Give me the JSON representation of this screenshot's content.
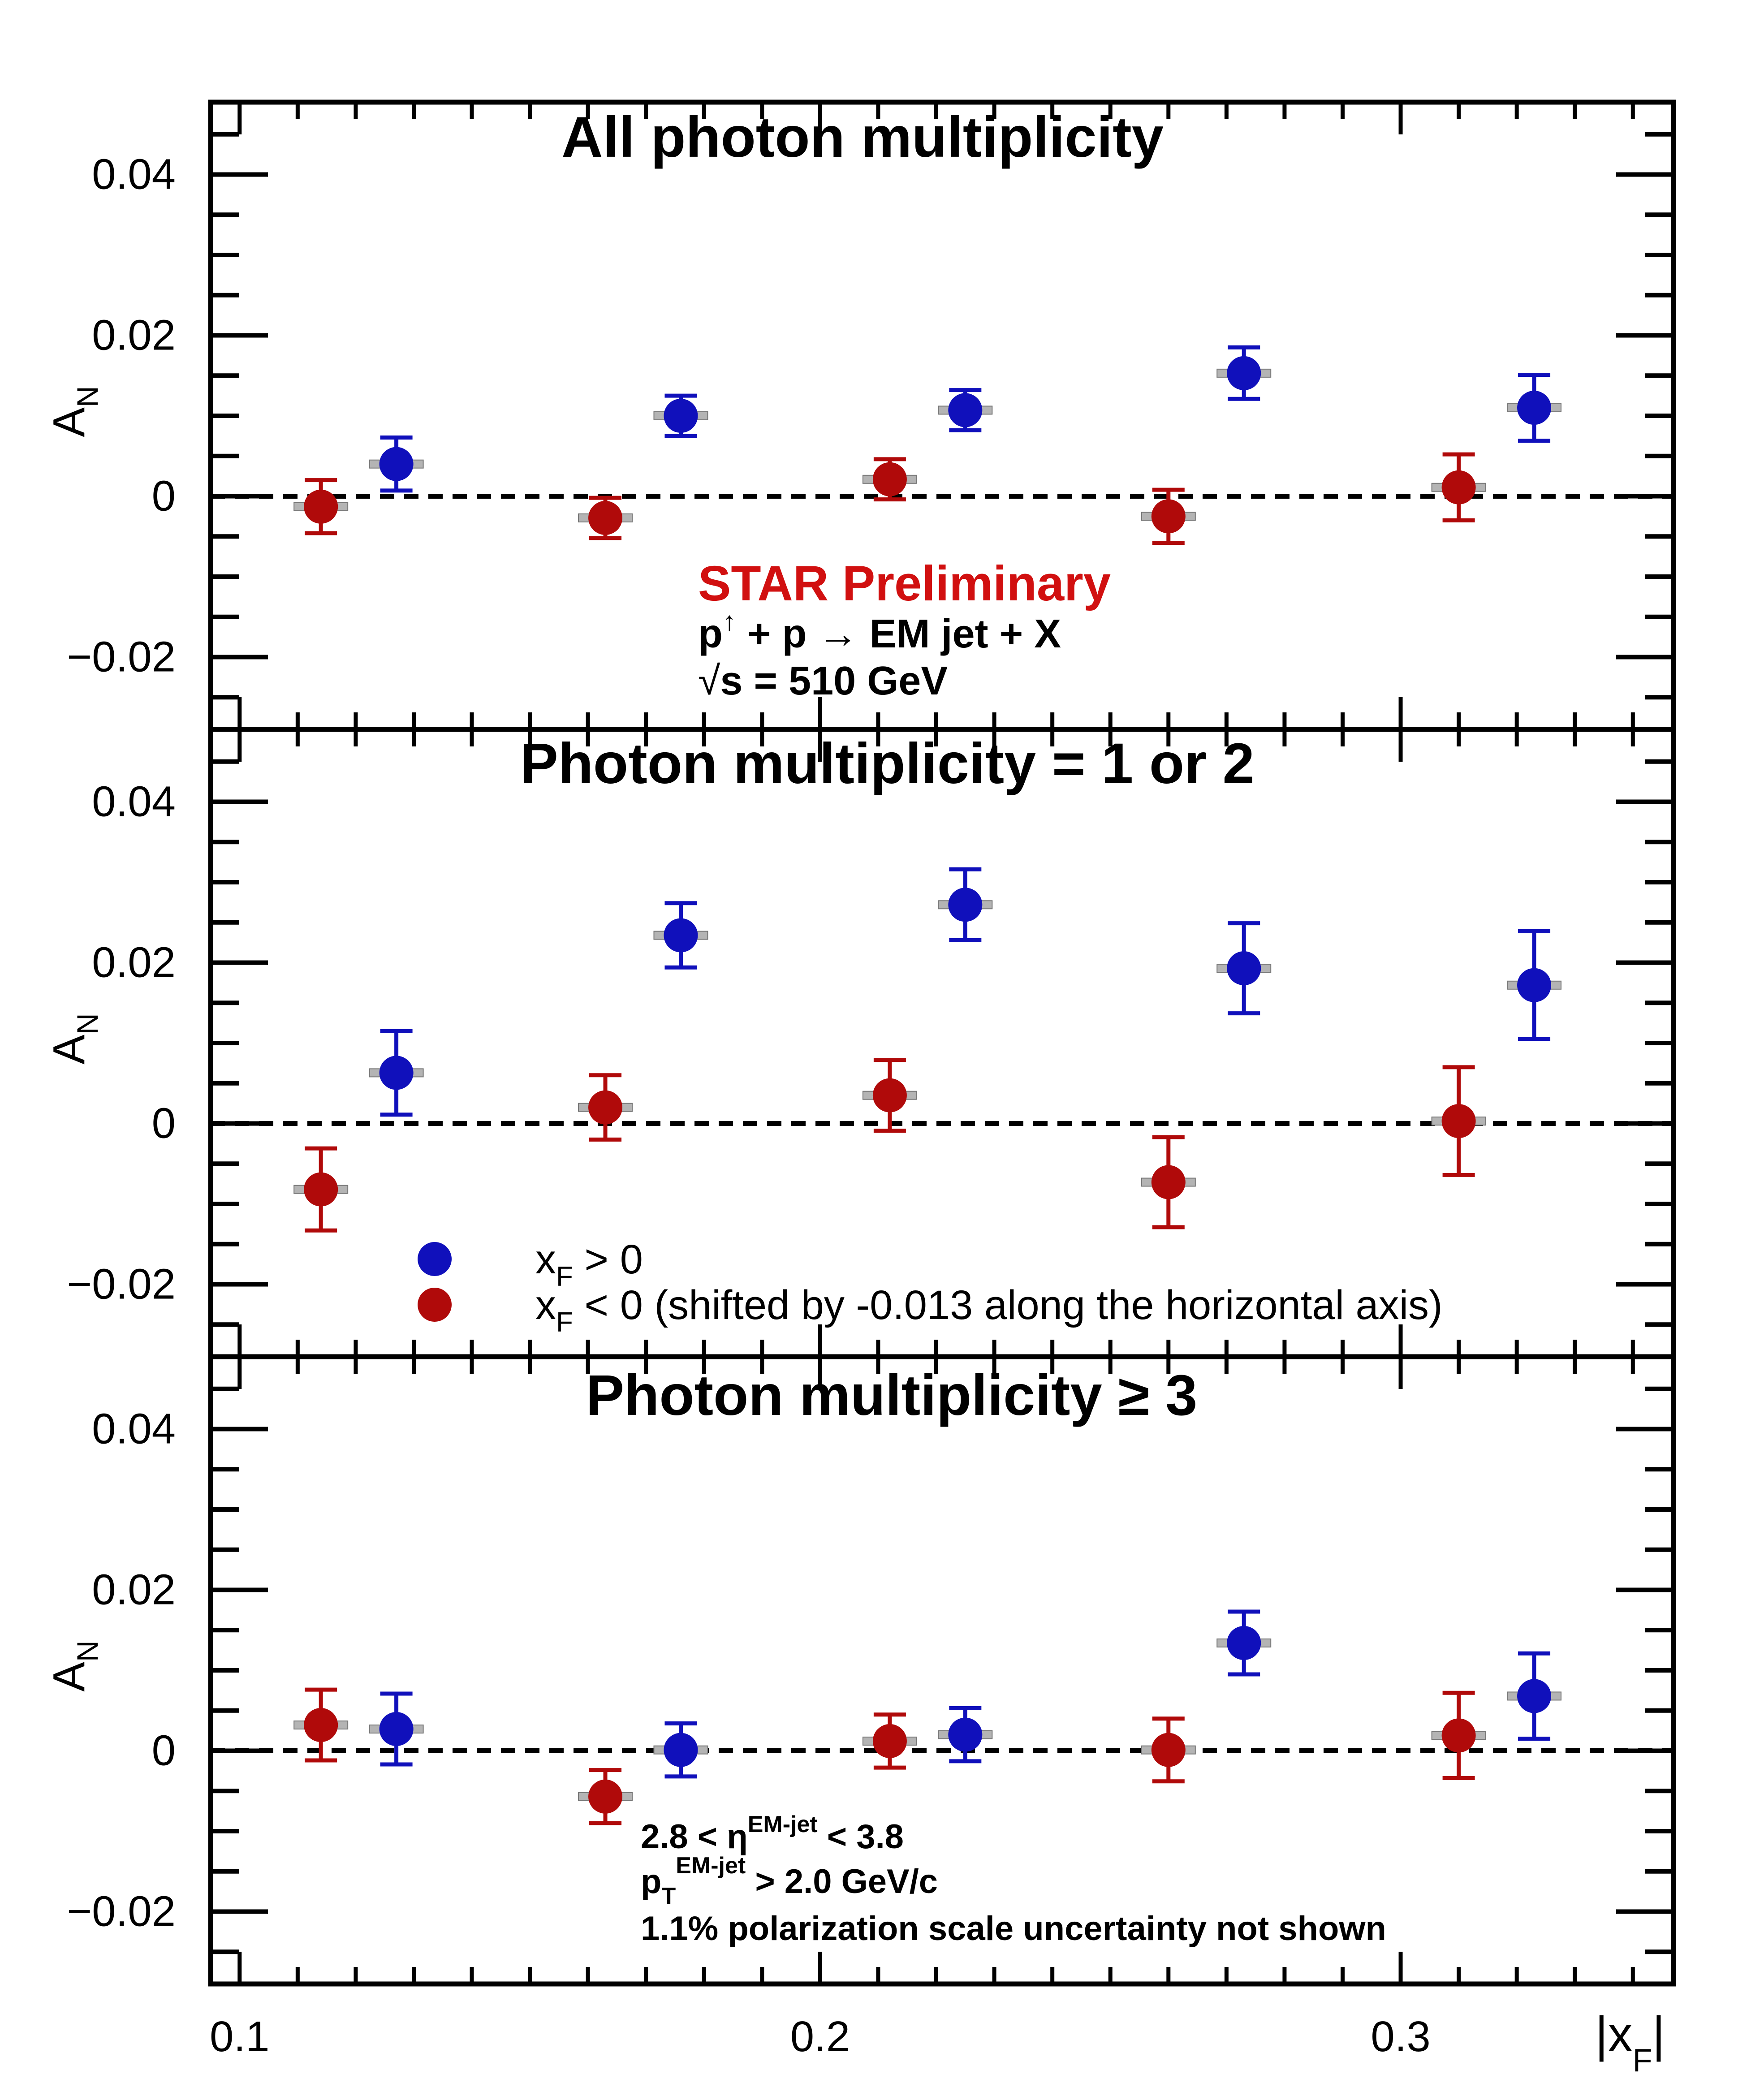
{
  "chart_data": {
    "type": "scatter",
    "x_axis": {
      "label_main": "|x",
      "label_sub": "F",
      "label_end": "|",
      "range": [
        0.095,
        0.347
      ],
      "ticks": [
        0.1,
        0.2,
        0.3
      ],
      "tick_labels": [
        "0.1",
        "0.2",
        "0.3"
      ]
    },
    "y_axis": {
      "label_main": "A",
      "label_sub": "N",
      "range": [
        -0.029,
        0.049
      ],
      "ticks": [
        -0.02,
        0,
        0.02,
        0.04
      ],
      "tick_labels": [
        "−0.02",
        "0",
        "0.02",
        "0.04"
      ]
    },
    "colors": {
      "xf_pos": "#1010bb",
      "xf_neg": "#b00a0a",
      "axes": "#000000",
      "star": "#d11010"
    },
    "legend": {
      "entries": [
        {
          "series": "xf_pos",
          "pre": "x",
          "sub": "F",
          "post": " > 0"
        },
        {
          "series": "xf_neg",
          "pre": "x",
          "sub": "F",
          "post": " < 0 (shifted by -0.013 along the horizontal axis)"
        }
      ]
    },
    "panels": [
      {
        "title": "All photon multiplicity",
        "series": {
          "xf_pos": [
            {
              "x": 0.127,
              "y": 0.004,
              "err": 0.0033
            },
            {
              "x": 0.176,
              "y": 0.01,
              "err": 0.0025
            },
            {
              "x": 0.225,
              "y": 0.0107,
              "err": 0.0025
            },
            {
              "x": 0.273,
              "y": 0.0153,
              "err": 0.0032
            },
            {
              "x": 0.323,
              "y": 0.011,
              "err": 0.0041
            }
          ],
          "xf_neg": [
            {
              "x": 0.114,
              "y": -0.0013,
              "err": 0.0033
            },
            {
              "x": 0.163,
              "y": -0.0027,
              "err": 0.0025
            },
            {
              "x": 0.212,
              "y": 0.0021,
              "err": 0.0025
            },
            {
              "x": 0.26,
              "y": -0.0025,
              "err": 0.0033
            },
            {
              "x": 0.31,
              "y": 0.0011,
              "err": 0.0041
            }
          ]
        }
      },
      {
        "title": "Photon multiplicity = 1 or 2",
        "series": {
          "xf_pos": [
            {
              "x": 0.127,
              "y": 0.0063,
              "err": 0.0052
            },
            {
              "x": 0.176,
              "y": 0.0234,
              "err": 0.004
            },
            {
              "x": 0.225,
              "y": 0.0272,
              "err": 0.0044
            },
            {
              "x": 0.273,
              "y": 0.0193,
              "err": 0.0056
            },
            {
              "x": 0.323,
              "y": 0.0172,
              "err": 0.0067
            }
          ],
          "xf_neg": [
            {
              "x": 0.114,
              "y": -0.0082,
              "err": 0.0051
            },
            {
              "x": 0.163,
              "y": 0.002,
              "err": 0.004
            },
            {
              "x": 0.212,
              "y": 0.0035,
              "err": 0.0044
            },
            {
              "x": 0.26,
              "y": -0.0073,
              "err": 0.0056
            },
            {
              "x": 0.31,
              "y": 0.0003,
              "err": 0.0067
            }
          ]
        }
      },
      {
        "title": "Photon multiplicity ≥ 3",
        "series": {
          "xf_pos": [
            {
              "x": 0.127,
              "y": 0.0027,
              "err": 0.0044
            },
            {
              "x": 0.176,
              "y": 0.0001,
              "err": 0.0033
            },
            {
              "x": 0.225,
              "y": 0.002,
              "err": 0.0033
            },
            {
              "x": 0.273,
              "y": 0.0134,
              "err": 0.0039
            },
            {
              "x": 0.323,
              "y": 0.0068,
              "err": 0.0053
            }
          ],
          "xf_neg": [
            {
              "x": 0.114,
              "y": 0.0032,
              "err": 0.0044
            },
            {
              "x": 0.163,
              "y": -0.0057,
              "err": 0.0033
            },
            {
              "x": 0.212,
              "y": 0.0012,
              "err": 0.0033
            },
            {
              "x": 0.26,
              "y": 0.0001,
              "err": 0.0039
            },
            {
              "x": 0.31,
              "y": 0.0019,
              "err": 0.0053
            }
          ]
        }
      }
    ],
    "annotations": {
      "star": "STAR Preliminary",
      "reaction": {
        "p": "p",
        "arrow_up": "↑",
        "rest": " + p  → EM jet + X"
      },
      "energy": {
        "sqrt": "√",
        "text": "s = 510 GeV"
      },
      "eta": {
        "pre": "2.8 < η",
        "sup": "EM-jet",
        "post": " < 3.8"
      },
      "pt": {
        "pre": "p",
        "sub": "T",
        "sup": "EM-jet",
        "post": " > 2.0 GeV/c"
      },
      "polarization": "1.1% polarization scale uncertainty not shown"
    }
  }
}
